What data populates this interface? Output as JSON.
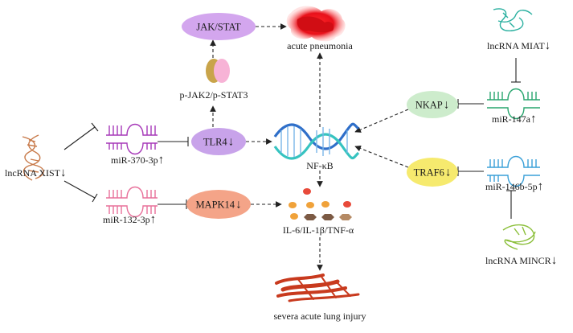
{
  "diagram": {
    "nodes": {
      "jak_stat": "JAK/STAT",
      "acute_pneumonia": "acute pneumonia",
      "p_jak2_stat3": "p-JAK2/p-STAT3",
      "tlr4": "TLR4",
      "nfkb": "NF-κB",
      "mapk14": "MAPK14",
      "cytokines": "IL-6/IL-1β/TNF-α",
      "lung_injury": "severa acute lung injury",
      "lncrna_xist": "lncRNA XIST",
      "mir_370": "miR-370-3p",
      "mir_132": "miR-132-3p",
      "lncrna_miat": "lncRNA MIAT",
      "nkap": "NKAP",
      "mir_147a": "miR-147a",
      "traf6": "TRAF6",
      "mir_146b": "miR-146b-5p",
      "lncrna_mincr": "lncRNA MINCR"
    },
    "regulation": {
      "down_arrow": "↓",
      "up_arrow": "↑"
    },
    "colors": {
      "jak_stat": "#d3a6ee",
      "tlr4": "#c8a3ea",
      "mapk14": "#f4a488",
      "nkap": "#cdeccc",
      "traf6": "#f6ea6e",
      "mir_370": "#a638b8",
      "mir_132": "#e8709a",
      "mir_147a": "#28a56e",
      "mir_146b": "#3aa0d8",
      "dna_nfkb_blue": "#2f6fc9",
      "dna_nfkb_teal": "#36c3c0",
      "dna_xist": "#c87a4a",
      "dna_miat": "#2bb0a0",
      "dna_mincr": "#8bbf3a",
      "pneumonia_red": "#e8101a",
      "injury_red": "#c83a1e"
    }
  }
}
